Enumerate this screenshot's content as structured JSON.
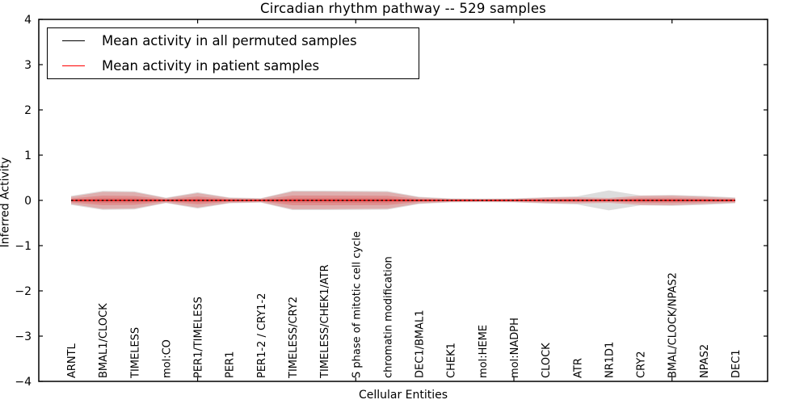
{
  "title": "Circadian rhythm pathway -- 529 samples",
  "axes": {
    "x_label": "Cellular Entities",
    "y_label": "Inferred Activity"
  },
  "legend": {
    "entries": [
      {
        "label": "Mean activity in all permuted samples",
        "color": "#000000"
      },
      {
        "label": "Mean activity in patient samples",
        "color": "#ff0000"
      }
    ]
  },
  "chart_data": {
    "type": "area",
    "title": "Circadian rhythm pathway -- 529 samples",
    "xlabel": "Cellular Entities",
    "ylabel": "Inferred Activity",
    "ylim": [
      -4,
      4
    ],
    "y_ticks": [
      4,
      3,
      2,
      1,
      0,
      -1,
      -2,
      -3,
      -4
    ],
    "x_major_tick_positions": [
      5,
      10,
      15,
      20
    ],
    "grid": false,
    "legend_position": "upper left",
    "categories": [
      "ARNTL",
      "BMAL1/CLOCK",
      "TIMELESS",
      "mol:CO",
      "PER1/TIMELESS",
      "PER1",
      "PER1-2 / CRY1-2",
      "TIMELESS/CRY2",
      "TIMELESS/CHEK1/ATR",
      "S phase of mitotic cell cycle",
      "chromatin modification",
      "DEC1/BMAL1",
      "CHEK1",
      "mol:HEME",
      "mol:NADPH",
      "CLOCK",
      "ATR",
      "NR1D1",
      "CRY2",
      "BMAL/CLOCK/NPAS2",
      "NPAS2",
      "DEC1"
    ],
    "series": [
      {
        "name": "Mean activity in all permuted samples",
        "type": "line",
        "style": "dashed",
        "color": "#000000",
        "values": [
          0,
          0,
          0,
          0,
          0,
          0,
          0,
          0,
          0,
          0,
          0,
          0,
          0,
          0,
          0,
          0,
          0,
          0,
          0,
          0,
          0,
          0
        ]
      },
      {
        "name": "Mean activity in patient samples",
        "type": "line",
        "style": "solid",
        "color": "#ff0000",
        "values": [
          0,
          0,
          0,
          0,
          0,
          0,
          0,
          0,
          0,
          0,
          0,
          0,
          0,
          0,
          0,
          0,
          0,
          0,
          0,
          0,
          0,
          0
        ]
      }
    ],
    "bands": [
      {
        "name": "Permuted samples activity spread",
        "color": "#aaaaaa",
        "half_widths": [
          0.1,
          0.21,
          0.2,
          0.06,
          0.18,
          0.065,
          0.05,
          0.215,
          0.215,
          0.21,
          0.205,
          0.08,
          0.045,
          0.04,
          0.045,
          0.07,
          0.09,
          0.22,
          0.11,
          0.12,
          0.1,
          0.065
        ]
      },
      {
        "name": "Patient samples activity spread",
        "color": "#e05050",
        "half_widths": [
          0.08,
          0.19,
          0.18,
          0.05,
          0.16,
          0.055,
          0.04,
          0.195,
          0.195,
          0.19,
          0.185,
          0.066,
          0.036,
          0.032,
          0.036,
          0.06,
          0.07,
          0.054,
          0.1,
          0.107,
          0.08,
          0.054
        ]
      }
    ]
  }
}
